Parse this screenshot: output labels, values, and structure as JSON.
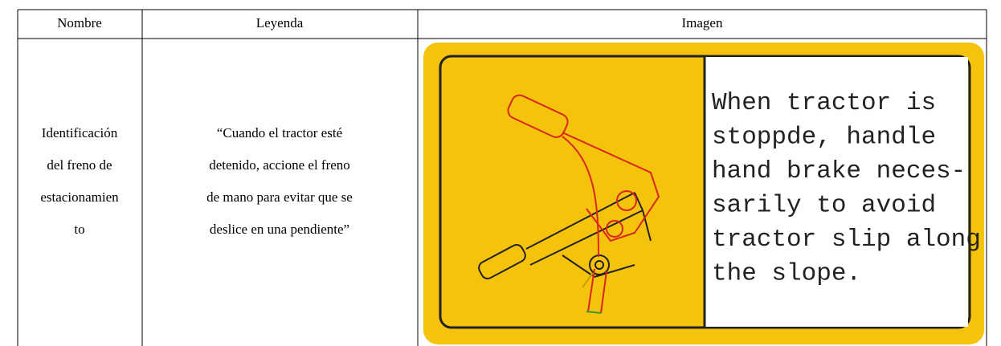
{
  "table": {
    "header": [
      "Nombre",
      "Leyenda",
      "Imagen"
    ],
    "row": {
      "name_lines": [
        "Identificación",
        "del freno de",
        "estacionamien",
        "to"
      ],
      "legend_lines": [
        "“Cuando el tractor esté",
        "detenido, accione el freno",
        "de mano para evitar que se",
        "deslice en una pendiente”"
      ],
      "image_text_lines": [
        "When tractor is",
        "stoppde, handle",
        "hand brake neces-",
        "sarily to avoid",
        "tractor slip along",
        "the slope."
      ]
    }
  }
}
